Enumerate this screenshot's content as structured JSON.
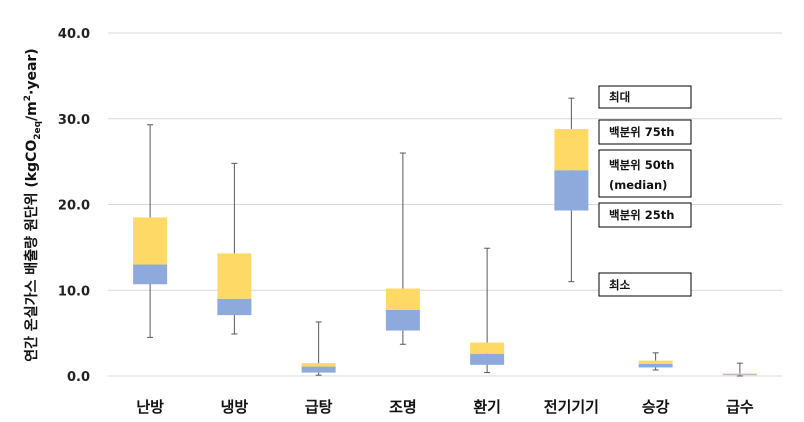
{
  "chart_data": {
    "type": "box",
    "ylabel": {
      "prefix": "연간 온실가스 배출량 원단위 (kgCO",
      "sub": "2eq",
      "mid": "/m",
      "sup": "2",
      "suffix": "·year)"
    },
    "ylim": [
      0,
      40
    ],
    "yticks": [
      "0.0",
      "10.0",
      "20.0",
      "30.0",
      "40.0"
    ],
    "ytick_values": [
      0,
      10,
      20,
      30,
      40
    ],
    "grid": true,
    "categories": [
      "난방",
      "냉방",
      "급탕",
      "조명",
      "환기",
      "전기기기",
      "승강",
      "급수"
    ],
    "boxes": [
      {
        "min": 4.5,
        "q1": 10.7,
        "median": 13.0,
        "q3": 18.5,
        "max": 29.3
      },
      {
        "min": 4.9,
        "q1": 7.1,
        "median": 9.0,
        "q3": 14.3,
        "max": 24.8
      },
      {
        "min": 0.1,
        "q1": 0.4,
        "median": 1.1,
        "q3": 1.5,
        "max": 6.3
      },
      {
        "min": 3.7,
        "q1": 5.3,
        "median": 7.7,
        "q3": 10.2,
        "max": 26.0
      },
      {
        "min": 0.4,
        "q1": 1.3,
        "median": 2.6,
        "q3": 3.9,
        "max": 14.9
      },
      {
        "min": 11.0,
        "q1": 19.3,
        "median": 24.0,
        "q3": 28.8,
        "max": 32.4
      },
      {
        "min": 0.7,
        "q1": 1.0,
        "median": 1.4,
        "q3": 1.8,
        "max": 2.7
      },
      {
        "min": 0.0,
        "q1": 0.1,
        "median": 0.2,
        "q3": 0.3,
        "max": 1.5
      }
    ],
    "colors": {
      "lower_box": "#8EA9DB",
      "upper_box": "#FFD966",
      "whisker": "#595959",
      "grid": "#D9D9D9"
    },
    "annotations": {
      "max": "최대",
      "q3": "백분위 75th",
      "median_line1": "백분위 50th",
      "median_line2": "(median)",
      "q1": "백분위 25th",
      "min": "최소"
    }
  }
}
